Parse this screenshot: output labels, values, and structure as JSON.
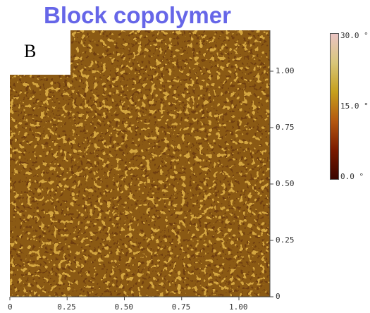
{
  "title": "Block copolymer",
  "panel_label": "B",
  "colors": {
    "title": "#6666e8",
    "afm_dark": "#5a2a08",
    "afm_mid": "#8b5a14",
    "afm_light": "#d4a640"
  },
  "x_axis": {
    "ticks": [
      "0",
      "0.25",
      "0.50",
      "0.75",
      "1.00"
    ],
    "values": [
      0,
      0.25,
      0.5,
      0.75,
      1.0
    ]
  },
  "y_axis": {
    "ticks": [
      "0",
      "0.25",
      "0.50",
      "0.75",
      "1.00"
    ],
    "values": [
      0,
      0.25,
      0.5,
      0.75,
      1.0
    ]
  },
  "colorbar": {
    "labels": [
      "30.0 °",
      "15.0 °",
      "0.0 °"
    ],
    "values": [
      30,
      15,
      0
    ],
    "stops": [
      "#3a0600",
      "#7a1a00",
      "#b45810",
      "#c6a01c",
      "#d8c67a",
      "#eac4c4"
    ]
  }
}
